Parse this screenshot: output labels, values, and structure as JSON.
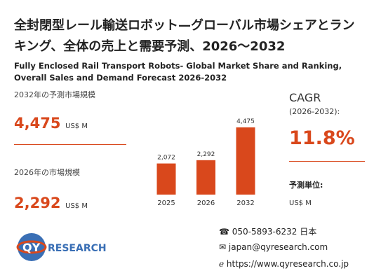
{
  "header": {
    "title": "全封閉型レール輸送ロボット—グローバル市場シェアとランキング、全体の売上と需要予測、2026～2032",
    "subtitle": "Fully Enclosed Rail Transport Robots- Global Market Share and Ranking, Overall Sales and Demand Forecast 2026-2032"
  },
  "summary": {
    "forecast_label": "2032年の予測市場規模",
    "forecast_value": "4,475",
    "forecast_unit": "US$ M",
    "current_label": "2026年の市場規模",
    "current_value": "2,292",
    "current_unit": "US$ M"
  },
  "cagr": {
    "label": "CAGR",
    "period": "(2026-2032):",
    "value": "11.8%",
    "unit_label": "予測単位:",
    "unit": "US$ M"
  },
  "chart_data": {
    "type": "bar",
    "categories": [
      "2025",
      "2026",
      "2032"
    ],
    "values": [
      2072,
      2292,
      4475
    ],
    "value_labels": [
      "2,072",
      "2,292",
      "4,475"
    ],
    "color": "#d9481c"
  },
  "logo": {
    "mark": "QY",
    "word": "RESEARCH"
  },
  "contact": {
    "phone": "050-5893-6232 日本",
    "email": "japan@qyresearch.com",
    "web": "https://www.qyresearch.co.jp"
  }
}
